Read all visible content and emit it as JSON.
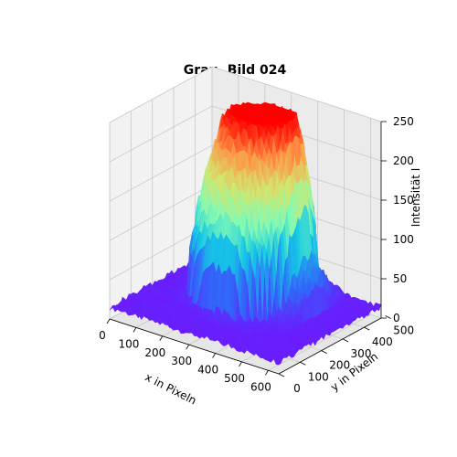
{
  "chart_data": {
    "type": "surface",
    "title": "Grau, Bild 024",
    "xlabel": "x in Pixeln",
    "ylabel": "y in Pixeln",
    "zlabel": "Intensität I",
    "xlim": [
      0,
      640
    ],
    "ylim": [
      0,
      480
    ],
    "zlim": [
      0,
      250
    ],
    "x_ticks": [
      0,
      100,
      200,
      300,
      400,
      500,
      600
    ],
    "y_ticks": [
      0,
      100,
      200,
      300,
      400,
      500
    ],
    "z_ticks": [
      0,
      50,
      100,
      150,
      200,
      250
    ],
    "colormap": "rainbow",
    "grid": true,
    "peaks": [
      {
        "x": 230,
        "y": 300,
        "z": 245
      },
      {
        "x": 340,
        "y": 360,
        "z": 250
      },
      {
        "x": 440,
        "y": 320,
        "z": 238
      },
      {
        "x": 330,
        "y": 250,
        "z": 215
      }
    ],
    "background_level": 15
  }
}
